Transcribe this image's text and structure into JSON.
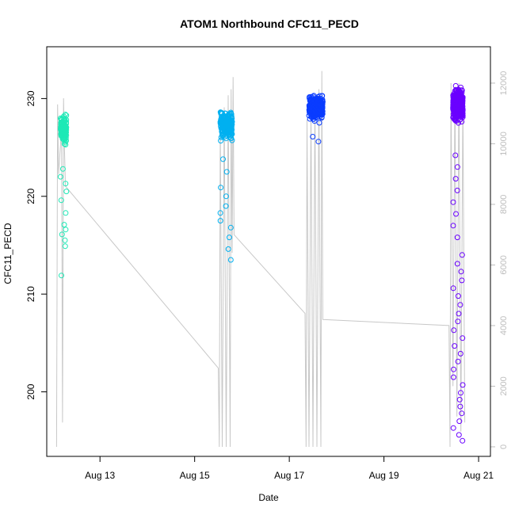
{
  "chart_data": {
    "type": "scatter",
    "title": "ATOM1 Northbound CFC11_PECD",
    "xlabel": "Date",
    "ylabel": "CFC11_PECD",
    "x_unit": "date",
    "xlim": [
      "2016-08-11T21:00",
      "2016-08-21T06:00"
    ],
    "ylim": [
      193.4,
      235.3
    ],
    "y2lim": [
      -315,
      13200
    ],
    "x_ticks": [
      {
        "label": "Aug 13",
        "value": "2016-08-13T00:00"
      },
      {
        "label": "Aug 15",
        "value": "2016-08-15T00:00"
      },
      {
        "label": "Aug 17",
        "value": "2016-08-17T00:00"
      },
      {
        "label": "Aug 19",
        "value": "2016-08-19T00:00"
      },
      {
        "label": "Aug 21",
        "value": "2016-08-21T00:00"
      }
    ],
    "y_ticks": [
      200,
      210,
      220,
      230
    ],
    "y2_ticks": [
      0,
      2000,
      4000,
      6000,
      8000,
      10000,
      12000
    ],
    "grid": false,
    "legend": "none",
    "colors": {
      "leg1": "#1de9b6",
      "leg2": "#00b0f0",
      "leg3": "#0a3cff",
      "leg4": "#6a00ff",
      "line": "#c8c8c8",
      "right_axis": "#bdbdbd"
    },
    "clusters": [
      {
        "x_range": [
          "2016-08-12T04:00",
          "2016-08-12T07:00"
        ],
        "center": 226.8,
        "spread": 1.5,
        "count": 140,
        "outliers": [
          211.9,
          214.9,
          215.5,
          216.1,
          216.6,
          217.1,
          218.3,
          219.6,
          220.5,
          221.3,
          222.0,
          222.8
        ],
        "color": "leg1"
      },
      {
        "x_range": [
          "2016-08-15T13:00",
          "2016-08-15T19:00"
        ],
        "center": 227.3,
        "spread": 1.6,
        "count": 220,
        "outliers": [
          213.5,
          214.6,
          215.8,
          216.8,
          217.5,
          218.3,
          219.0,
          220.0,
          220.9,
          222.5,
          223.8
        ],
        "color": "leg2"
      },
      {
        "x_range": [
          "2016-08-17T10:00",
          "2016-08-17T17:00"
        ],
        "center": 229.1,
        "spread": 1.4,
        "count": 320,
        "outliers": [
          225.6,
          226.1
        ],
        "color": "leg3"
      },
      {
        "x_range": [
          "2016-08-20T11:00",
          "2016-08-20T16:00"
        ],
        "center": 229.4,
        "spread": 1.8,
        "count": 420,
        "outliers": [
          195.0,
          195.6,
          196.3,
          197.0,
          197.8,
          198.5,
          199.2,
          199.9,
          200.7,
          201.5,
          202.3,
          203.1,
          203.9,
          204.7,
          205.5,
          206.3,
          207.2,
          208.0,
          208.9,
          209.8,
          210.6,
          211.4,
          212.3,
          213.1,
          214.0,
          215.8,
          217.0,
          218.2,
          219.4,
          220.6,
          221.8,
          223.0,
          224.2
        ],
        "color": "leg4"
      }
    ],
    "line_series": {
      "axis": "right",
      "points": [
        [
          "2016-08-12T02:00",
          0
        ],
        [
          "2016-08-12T02:30",
          11300
        ],
        [
          "2016-08-12T03:00",
          9000
        ],
        [
          "2016-08-12T04:30",
          10500
        ],
        [
          "2016-08-12T05:00",
          800
        ],
        [
          "2016-08-12T05:30",
          11500
        ],
        [
          "2016-08-12T06:00",
          9800
        ],
        [
          "2016-08-12T06:30",
          8600
        ],
        [
          "2016-08-15T12:00",
          2600
        ],
        [
          "2016-08-15T12:30",
          0
        ],
        [
          "2016-08-15T13:00",
          10800
        ],
        [
          "2016-08-15T14:00",
          0
        ],
        [
          "2016-08-15T15:00",
          11200
        ],
        [
          "2016-08-15T16:00",
          0
        ],
        [
          "2016-08-15T17:00",
          11600
        ],
        [
          "2016-08-15T18:00",
          0
        ],
        [
          "2016-08-15T18:30",
          11800
        ],
        [
          "2016-08-15T19:00",
          6400
        ],
        [
          "2016-08-15T19:30",
          12200
        ],
        [
          "2016-08-15T20:00",
          7000
        ],
        [
          "2016-08-17T08:00",
          4400
        ],
        [
          "2016-08-17T08:30",
          0
        ],
        [
          "2016-08-17T09:00",
          10800
        ],
        [
          "2016-08-17T10:00",
          0
        ],
        [
          "2016-08-17T11:00",
          11200
        ],
        [
          "2016-08-17T12:00",
          0
        ],
        [
          "2016-08-17T13:00",
          11400
        ],
        [
          "2016-08-17T14:00",
          0
        ],
        [
          "2016-08-17T15:00",
          11800
        ],
        [
          "2016-08-17T16:00",
          0
        ],
        [
          "2016-08-17T16:30",
          12400
        ],
        [
          "2016-08-17T17:00",
          4200
        ],
        [
          "2016-08-20T09:00",
          4000
        ],
        [
          "2016-08-20T09:30",
          0
        ],
        [
          "2016-08-20T10:00",
          12000
        ],
        [
          "2016-08-20T11:00",
          2000
        ],
        [
          "2016-08-20T12:00",
          11800
        ],
        [
          "2016-08-20T13:00",
          1000
        ],
        [
          "2016-08-20T14:00",
          12000
        ],
        [
          "2016-08-20T15:00",
          500
        ],
        [
          "2016-08-20T16:00",
          11500
        ],
        [
          "2016-08-20T17:00",
          800
        ]
      ]
    }
  }
}
